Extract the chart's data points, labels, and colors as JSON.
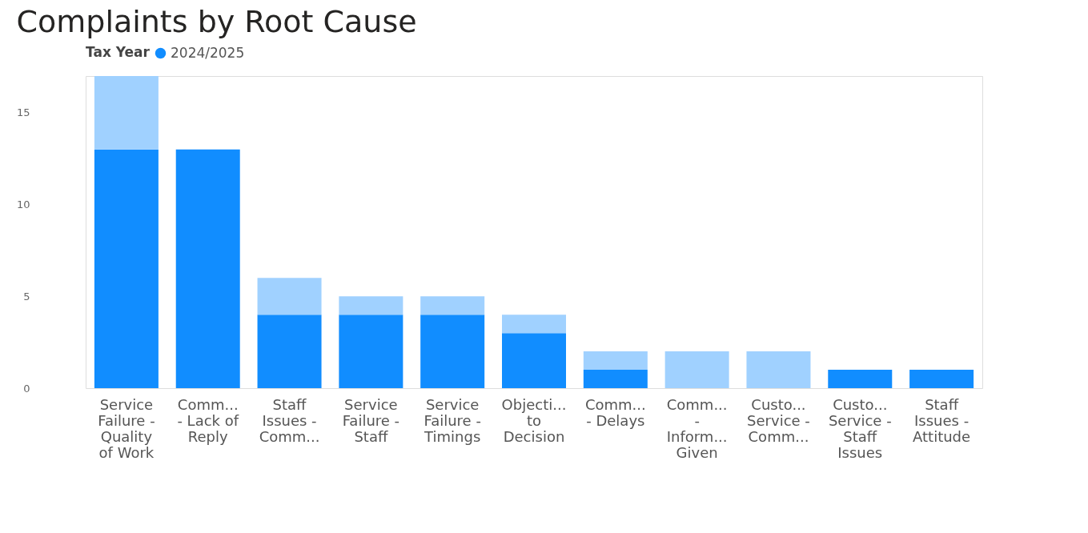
{
  "chart_data": {
    "type": "bar",
    "title": "Complaints by Root Cause",
    "legend_title": "Tax Year",
    "stacked": true,
    "legend": "top left",
    "grid": false,
    "categories": [
      "Service\nFailure -\nQuality\nof Work",
      "Comm...\n- Lack of\nReply",
      "Staff\nIssues -\nComm...",
      "Service\nFailure -\nStaff",
      "Service\nFailure -\nTimings",
      "Objecti...\nto\nDecision",
      "Comm...\n- Delays",
      "Comm...\n-\nInform...\nGiven",
      "Custo...\nService -\nComm...",
      "Custo...\nService -\nStaff\nIssues",
      "Staff\nIssues -\nAttitude"
    ],
    "series": [
      {
        "name": "2024/2025",
        "color": "#118dff",
        "values": [
          13,
          13,
          4,
          4,
          4,
          3,
          1,
          0,
          0,
          1,
          1
        ]
      },
      {
        "color": "#a0d1ff",
        "values": [
          4,
          0,
          2,
          1,
          1,
          1,
          1,
          2,
          2,
          0,
          0
        ]
      }
    ],
    "ylim": [
      0,
      17
    ],
    "yticks": [
      0,
      5,
      10,
      15
    ]
  }
}
